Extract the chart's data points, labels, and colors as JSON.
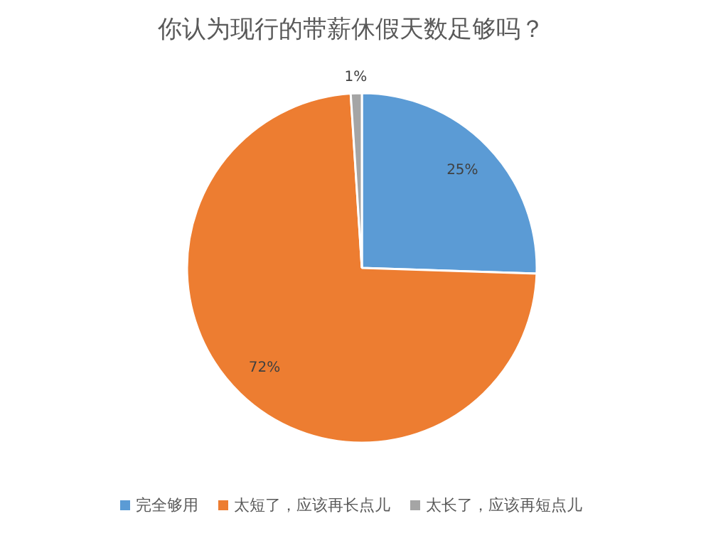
{
  "chart_data": {
    "type": "pie",
    "title": "你认为现行的带薪休假天数足够吗？",
    "categories": [
      "完全够用",
      "太短了，应该再长点儿",
      "太长了，应该再短点儿"
    ],
    "values": [
      25,
      72,
      1
    ],
    "colors": [
      "#5b9bd5",
      "#ed7d31",
      "#a5a5a5"
    ],
    "value_labels": [
      "25%",
      "72%",
      "1%"
    ],
    "legend": "bottom"
  }
}
